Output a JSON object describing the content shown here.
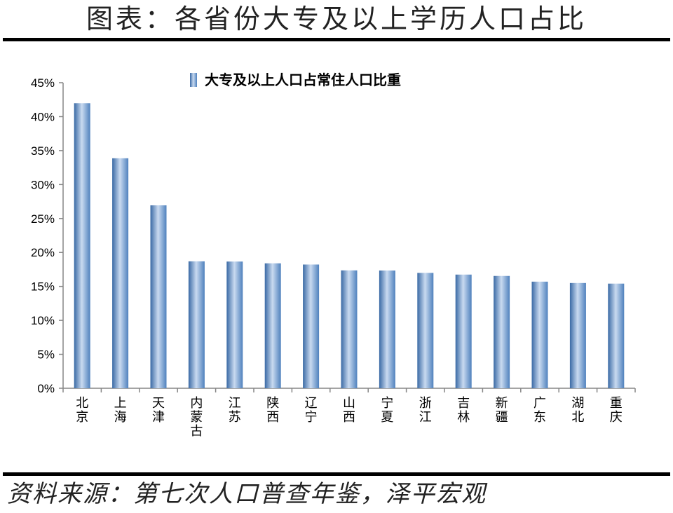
{
  "page": {
    "title": "图表：各省份大专及以上学历人口占比",
    "source": "资料来源：第七次人口普查年鉴，泽平宏观"
  },
  "chart_data": {
    "type": "bar",
    "title": "",
    "xlabel": "",
    "ylabel": "",
    "legend": {
      "position": "top-center",
      "entries": [
        "大专及以上人口占常住人口比重"
      ]
    },
    "categories": [
      "北京",
      "上海",
      "天津",
      "内蒙古",
      "江苏",
      "陕西",
      "辽宁",
      "山西",
      "宁夏",
      "浙江",
      "吉林",
      "新疆",
      "广东",
      "湖北",
      "重庆"
    ],
    "series": [
      {
        "name": "大专及以上人口占常住人口比重",
        "values": [
          41.98,
          33.87,
          26.94,
          18.69,
          18.66,
          18.4,
          18.22,
          17.36,
          17.34,
          16.99,
          16.74,
          16.54,
          15.7,
          15.5,
          15.41
        ]
      }
    ],
    "ylim": [
      0,
      45
    ],
    "yticks": [
      "0%",
      "5%",
      "10%",
      "15%",
      "20%",
      "25%",
      "30%",
      "35%",
      "40%",
      "45%"
    ],
    "grid": false,
    "colors": {
      "bar": "#4F81BD",
      "bar_light": "#C9DAF0",
      "bar_dark": "#3A6AA5"
    }
  }
}
